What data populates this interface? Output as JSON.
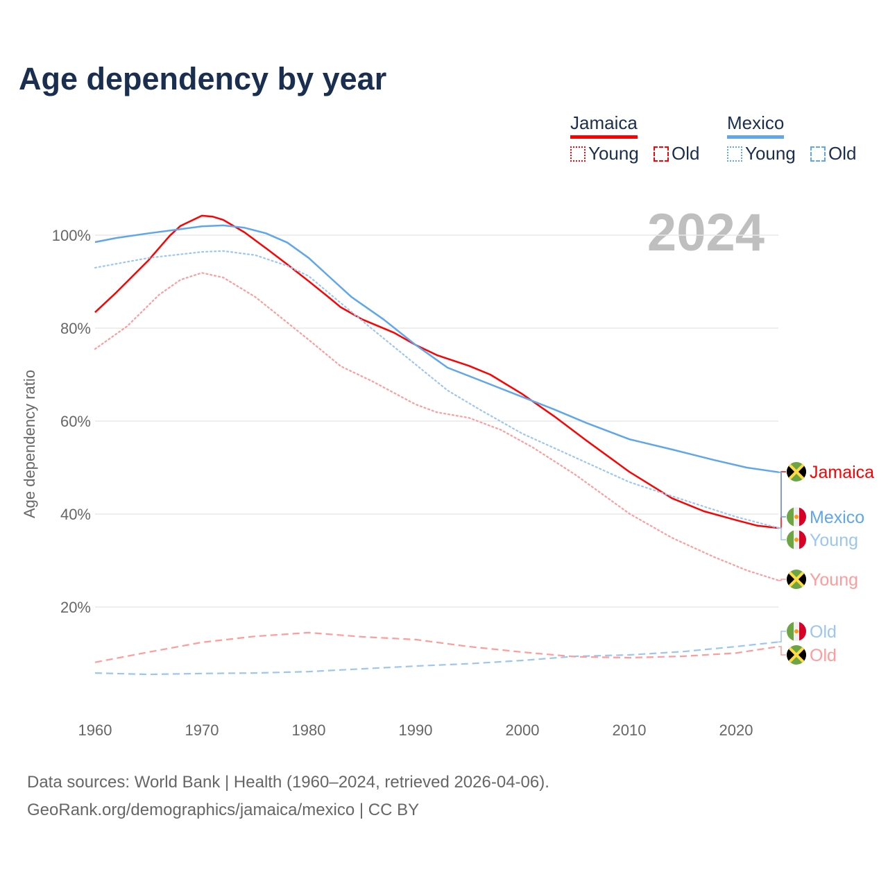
{
  "title": "Age dependency by year",
  "year_badge": "2024",
  "legend": {
    "groups": [
      {
        "name": "Jamaica",
        "color": "#ff0000",
        "young": "Young",
        "old": "Old"
      },
      {
        "name": "Mexico",
        "color": "#5fa6ea",
        "young": "Young",
        "old": "Old"
      }
    ]
  },
  "footer": {
    "line1": "Data sources: World Bank | Health (1960–2024, retrieved 2026-04-06).",
    "line2": "GeoRank.org/demographics/jamaica/mexico | CC BY"
  },
  "chart_data": {
    "type": "line",
    "title": "Age dependency by year",
    "xlabel": "",
    "ylabel": "Age dependency ratio",
    "xlim": [
      1960,
      2024
    ],
    "ylim": [
      0,
      110
    ],
    "xticks": [
      "1960",
      "1970",
      "1980",
      "1990",
      "2000",
      "2010",
      "2020"
    ],
    "yticks": [
      "20%",
      "40%",
      "60%",
      "80%",
      "100%"
    ],
    "grid": true,
    "series": [
      {
        "name": "Jamaica",
        "label": "Jamaica",
        "country": "jamaica",
        "style": "solid",
        "color": "#ff0000",
        "labelColor": "#ff0000",
        "x": [
          1960,
          1962,
          1965,
          1967,
          1968,
          1970,
          1971,
          1972,
          1974,
          1976,
          1978,
          1980,
          1982,
          1983,
          1985,
          1988,
          1990,
          1992,
          1995,
          1997,
          2000,
          2003,
          2006,
          2010,
          2014,
          2017,
          2020,
          2022,
          2024
        ],
        "y": [
          83.4,
          87.7,
          94.6,
          99.9,
          102,
          104.2,
          104,
          103.3,
          100.6,
          97.2,
          93.7,
          90.1,
          86.4,
          84.5,
          81.9,
          79,
          76.4,
          74.2,
          71.9,
          70,
          65.8,
          61,
          55.8,
          49.1,
          43.4,
          40.6,
          38.7,
          37.5,
          37
        ]
      },
      {
        "name": "Mexico",
        "label": "Mexico",
        "country": "mexico",
        "style": "solid",
        "color": "#5fa6ea",
        "labelColor": "#5fa6ea",
        "x": [
          1960,
          1962,
          1965,
          1970,
          1972,
          1974,
          1976,
          1978,
          1980,
          1982,
          1984,
          1987,
          1990,
          1993,
          1996,
          2000,
          2003,
          2006,
          2010,
          2014,
          2018,
          2021,
          2024
        ],
        "y": [
          98.5,
          99.4,
          100.4,
          101.9,
          102.1,
          101.6,
          100.4,
          98.4,
          95.1,
          90.9,
          86.7,
          81.9,
          76.4,
          71.5,
          68.8,
          65.2,
          62.5,
          59.6,
          56.1,
          53.9,
          51.6,
          50,
          49
        ]
      },
      {
        "name": "Mexico Young",
        "label": "Young",
        "country": "mexico",
        "style": "dotted",
        "color": "#9cc6f0",
        "labelColor": "#9cc6f0",
        "x": [
          1960,
          1965,
          1970,
          1972,
          1975,
          1978,
          1980,
          1983,
          1986,
          1990,
          1993,
          1996,
          2000,
          2005,
          2010,
          2015,
          2020,
          2024
        ],
        "y": [
          93,
          95.1,
          96.4,
          96.6,
          95.7,
          93.4,
          91.2,
          85.4,
          79.7,
          72.2,
          66.6,
          62.5,
          57.3,
          52.1,
          46.9,
          43.1,
          39.4,
          37
        ]
      },
      {
        "name": "Jamaica Young",
        "label": "Young",
        "country": "jamaica",
        "style": "dotted",
        "color": "#ff9b9b",
        "labelColor": "#ff9b9b",
        "x": [
          1960,
          1963,
          1966,
          1968,
          1970,
          1972,
          1975,
          1978,
          1980,
          1983,
          1986,
          1990,
          1992,
          1995,
          1998,
          2001,
          2005,
          2010,
          2014,
          2018,
          2021,
          2024
        ],
        "y": [
          75.5,
          80.4,
          87.2,
          90.4,
          91.9,
          90.9,
          86.7,
          81.2,
          77.5,
          71.8,
          68.5,
          63.6,
          61.9,
          60.7,
          58.1,
          54.3,
          48.4,
          40.1,
          34.9,
          30.7,
          27.9,
          25.7
        ]
      },
      {
        "name": "Mexico Old",
        "label": "Old",
        "country": "mexico",
        "style": "dashed",
        "color": "#9cc6f0",
        "labelColor": "#9cc6f0",
        "x": [
          1960,
          1965,
          1970,
          1975,
          1980,
          1985,
          1990,
          1995,
          2000,
          2005,
          2010,
          2015,
          2020,
          2024
        ],
        "y": [
          5.8,
          5.5,
          5.7,
          5.8,
          6.1,
          6.7,
          7.3,
          7.8,
          8.5,
          9.4,
          9.7,
          10.4,
          11.5,
          12.5
        ]
      },
      {
        "name": "Jamaica Old",
        "label": "Old",
        "country": "jamaica",
        "style": "dashed",
        "color": "#ff9b9b",
        "labelColor": "#ff9b9b",
        "x": [
          1960,
          1965,
          1970,
          1975,
          1980,
          1985,
          1990,
          1995,
          2000,
          2005,
          2010,
          2015,
          2020,
          2024
        ],
        "y": [
          8.1,
          10.3,
          12.4,
          13.7,
          14.5,
          13.6,
          13,
          11.5,
          10.3,
          9.3,
          9.1,
          9.4,
          10.1,
          11.5
        ]
      }
    ]
  }
}
